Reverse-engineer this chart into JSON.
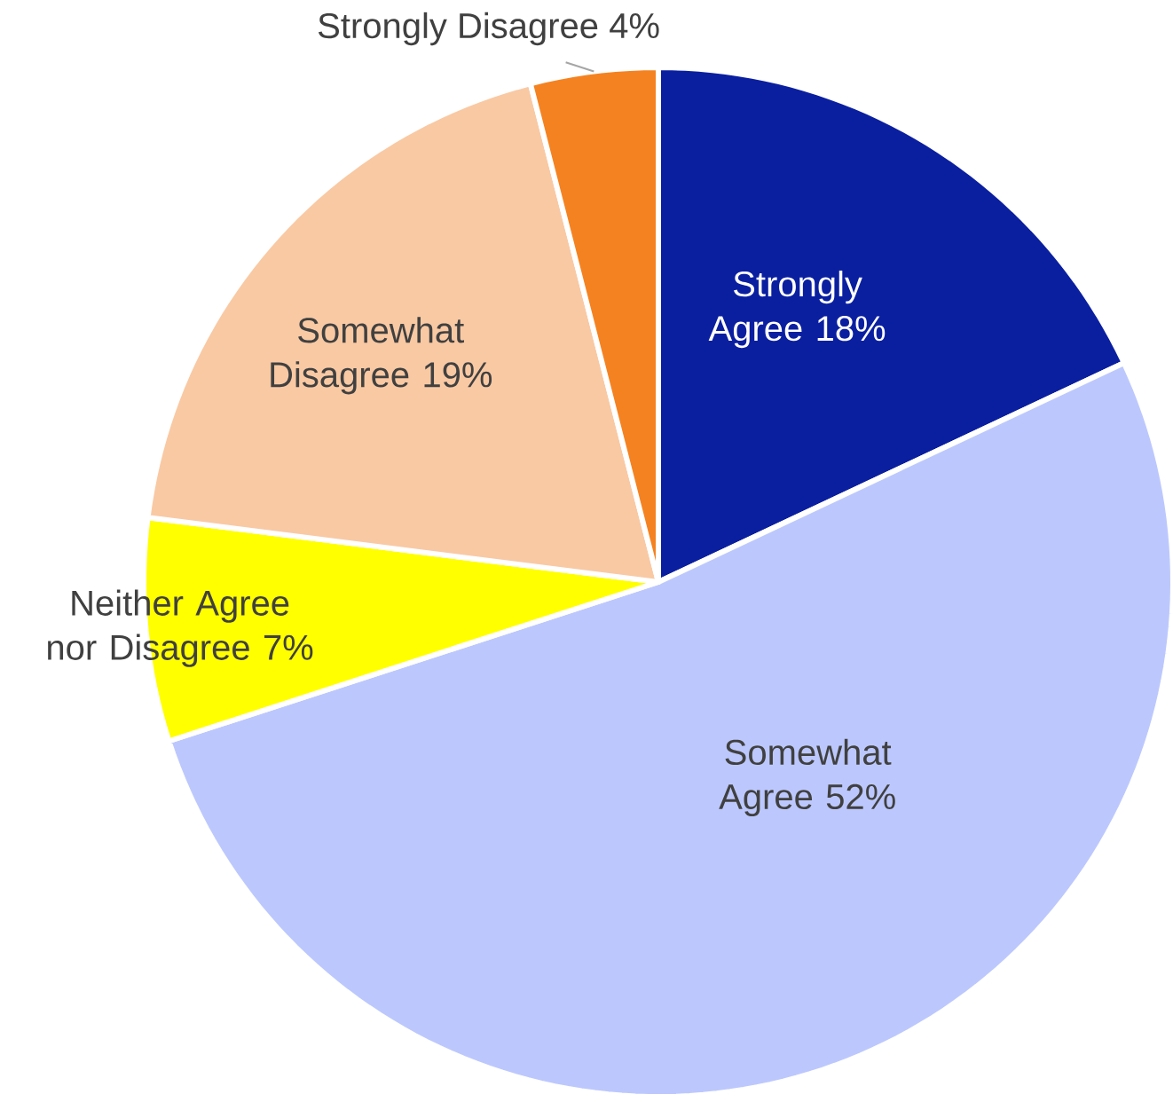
{
  "chart_data": {
    "type": "pie",
    "categories": [
      "Strongly Agree",
      "Somewhat Agree",
      "Neither Agree nor Disagree",
      "Somewhat Disagree",
      "Strongly Disagree"
    ],
    "values": [
      18,
      52,
      7,
      19,
      4
    ],
    "value_labels": [
      "18%",
      "52%",
      "7%",
      "19%",
      "4%"
    ],
    "colors": [
      "#0a1fa0",
      "#bcc8fd",
      "#ffff00",
      "#f9c9a3",
      "#f58220"
    ]
  }
}
